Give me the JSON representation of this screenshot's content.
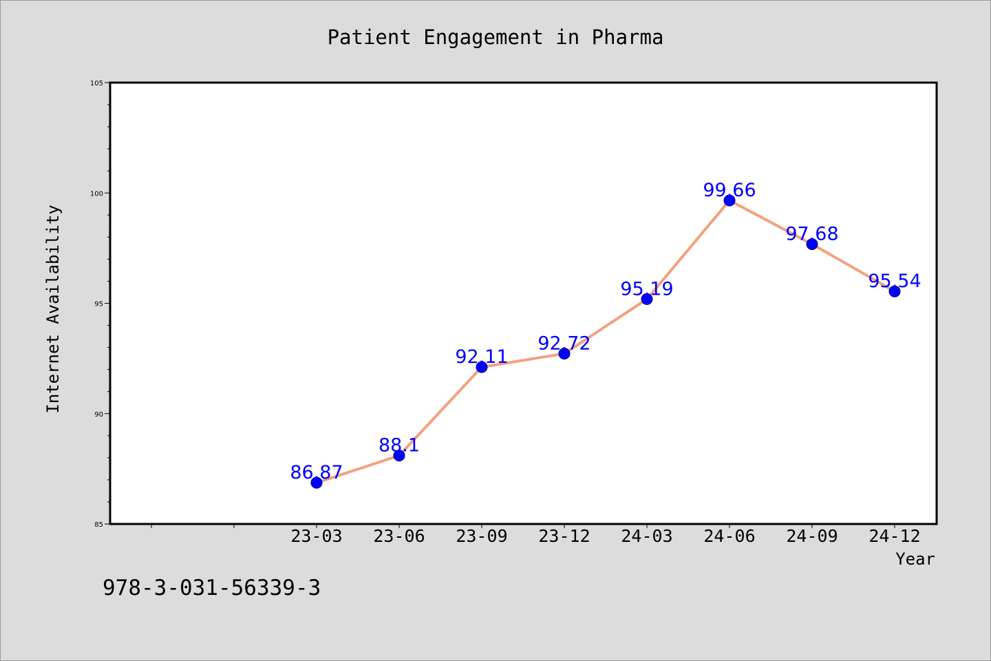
{
  "chart_data": {
    "type": "line",
    "title": "Patient Engagement in Pharma",
    "xlabel": "Year",
    "ylabel": "Internet Availability",
    "categories": [
      "23-03",
      "23-06",
      "23-09",
      "23-12",
      "24-03",
      "24-06",
      "24-09",
      "24-12"
    ],
    "series": [
      {
        "values": [
          86.87,
          88.1,
          92.11,
          92.72,
          95.19,
          99.66,
          97.68,
          95.54
        ],
        "data_labels": [
          "86.87",
          "88.1",
          "92.11",
          "92.72",
          "95.19",
          "99.66",
          "97.68",
          "95.54"
        ],
        "line_color": "#f4a07e",
        "marker_color": "#0000ff"
      }
    ],
    "ylim": [
      85,
      105
    ],
    "yticks": [
      "85",
      "90",
      "95",
      "100",
      "105"
    ],
    "grid": false,
    "label_color": "#0000ff",
    "background_color": "#dcdcdc",
    "plot_background_color": "#ffffff"
  },
  "footer": {
    "code": "978-3-031-56339-3"
  }
}
